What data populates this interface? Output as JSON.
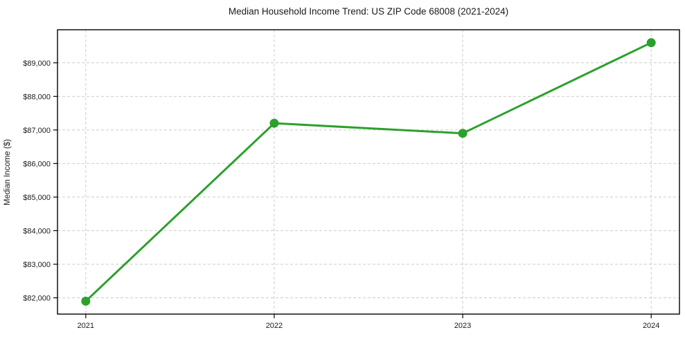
{
  "chart_data": {
    "type": "line",
    "title": "Median Household Income Trend: US ZIP Code 68008 (2021-2024)",
    "xlabel": "",
    "ylabel": "Median Income ($)",
    "x": [
      2021,
      2022,
      2023,
      2024
    ],
    "series": [
      {
        "name": "Median Household Income",
        "values": [
          81900,
          87200,
          86900,
          89600
        ],
        "color": "#2ca02c",
        "marker": "circle",
        "line_width": 3,
        "marker_radius": 6.5
      }
    ],
    "xticks": {
      "values": [
        2021,
        2022,
        2023,
        2024
      ],
      "labels": [
        "2021",
        "2022",
        "2023",
        "2024"
      ]
    },
    "yticks": {
      "values": [
        82000,
        83000,
        84000,
        85000,
        86000,
        87000,
        88000,
        89000
      ],
      "labels": [
        "$82,000",
        "$83,000",
        "$84,000",
        "$85,000",
        "$86,000",
        "$87,000",
        "$88,000",
        "$89,000"
      ]
    },
    "xlim": [
      2020.85,
      2024.15
    ],
    "ylim": [
      81515,
      89985
    ],
    "grid": true,
    "grid_style": "dashed",
    "legend": "none"
  },
  "colors": {
    "line": "#2ca02c",
    "grid": "#cbcbcb",
    "spine": "#000000",
    "text": "#1a1a1a",
    "background": "#ffffff"
  }
}
